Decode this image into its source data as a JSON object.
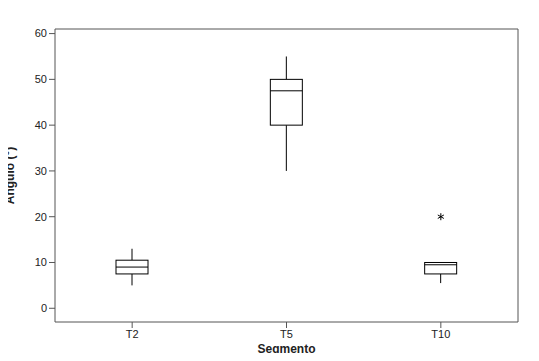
{
  "chart_data": {
    "type": "box",
    "x_label": "Segmento",
    "y_label": "Ángulo (°)",
    "categories": [
      "T2",
      "T5",
      "T10"
    ],
    "min": [
      5,
      30,
      5.5
    ],
    "q1": [
      7.5,
      40,
      7.5
    ],
    "median": [
      9,
      47.5,
      9.5
    ],
    "q3": [
      10.5,
      50,
      10
    ],
    "max": [
      13,
      55,
      10
    ],
    "outliers": [
      [],
      [],
      [
        20
      ]
    ],
    "color": "#000000",
    "marker": "asterisk",
    "ylim": [
      -3,
      61
    ],
    "yticks": [
      0,
      10,
      20,
      30,
      40,
      50,
      60
    ],
    "grid": false
  }
}
